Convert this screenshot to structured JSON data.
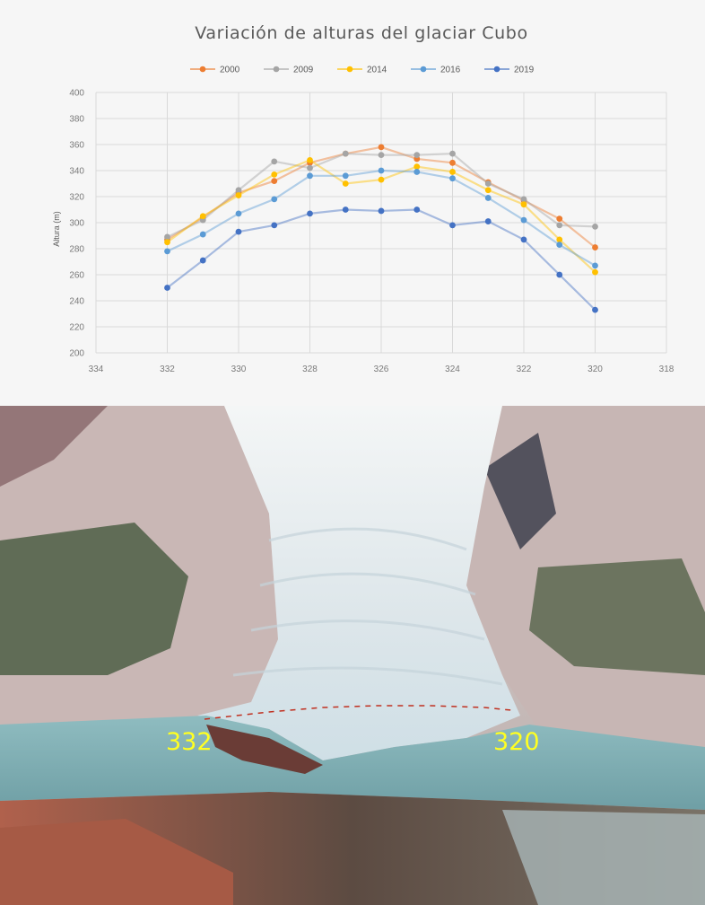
{
  "chart_data": {
    "type": "line",
    "title": "Variación de alturas del glaciar Cubo",
    "xlabel": "",
    "ylabel": "Altura (m)",
    "xlim": [
      318,
      334
    ],
    "x_reversed": true,
    "ylim": [
      200,
      400
    ],
    "x_ticks": [
      334,
      332,
      330,
      328,
      326,
      324,
      322,
      320,
      318
    ],
    "y_ticks": [
      200,
      220,
      240,
      260,
      280,
      300,
      320,
      340,
      360,
      380,
      400
    ],
    "grid": true,
    "legend_position": "top",
    "x": [
      332,
      331,
      330,
      329,
      328,
      327,
      326,
      325,
      324,
      323,
      322,
      321,
      320
    ],
    "series": [
      {
        "name": "2000",
        "color": "#ed7d31",
        "values": [
          287,
          304,
          323,
          332,
          346,
          353,
          358,
          349,
          346,
          331,
          317,
          303,
          281
        ]
      },
      {
        "name": "2009",
        "color": "#a5a5a5",
        "values": [
          289,
          302,
          325,
          347,
          342,
          353,
          352,
          352,
          353,
          330,
          318,
          298,
          297
        ]
      },
      {
        "name": "2014",
        "color": "#ffc000",
        "values": [
          285,
          305,
          321,
          337,
          348,
          330,
          333,
          343,
          339,
          325,
          314,
          287,
          262
        ]
      },
      {
        "name": "2016",
        "color": "#5b9bd5",
        "values": [
          278,
          291,
          307,
          318,
          336,
          336,
          340,
          339,
          334,
          319,
          302,
          283,
          267
        ]
      },
      {
        "name": "2019",
        "color": "#4472c4",
        "values": [
          250,
          271,
          293,
          298,
          307,
          310,
          309,
          310,
          298,
          301,
          287,
          260,
          233
        ]
      }
    ]
  },
  "photo": {
    "label_left": "332",
    "label_right": "320"
  }
}
